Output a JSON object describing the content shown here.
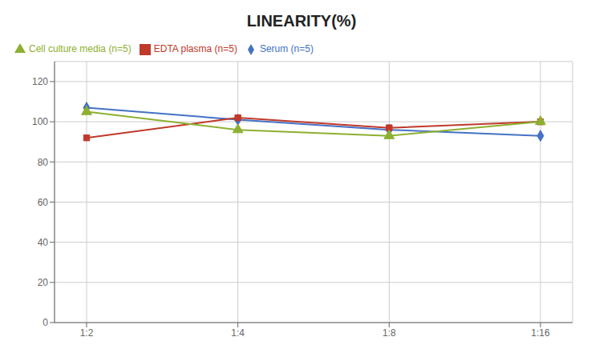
{
  "chart_data": {
    "type": "line",
    "title": "LINEARITY(%)",
    "categories": [
      "1:2",
      "1:4",
      "1:8",
      "1:16"
    ],
    "series": [
      {
        "name": "Serum (n=5)",
        "color": "#4472c4",
        "marker": "diamond",
        "values": [
          107,
          101,
          96,
          93
        ]
      },
      {
        "name": "EDTA plasma (n=5)",
        "color": "#c0392b",
        "marker": "square",
        "values": [
          92,
          102,
          97,
          100
        ]
      },
      {
        "name": "Cell culture media (n=5)",
        "color": "#8db030",
        "marker": "triangle",
        "values": [
          105,
          96,
          93,
          100
        ]
      }
    ],
    "ylim": [
      0,
      130
    ],
    "yticks": [
      0,
      20,
      40,
      60,
      80,
      100,
      120
    ],
    "grid": true,
    "legend": "top"
  }
}
